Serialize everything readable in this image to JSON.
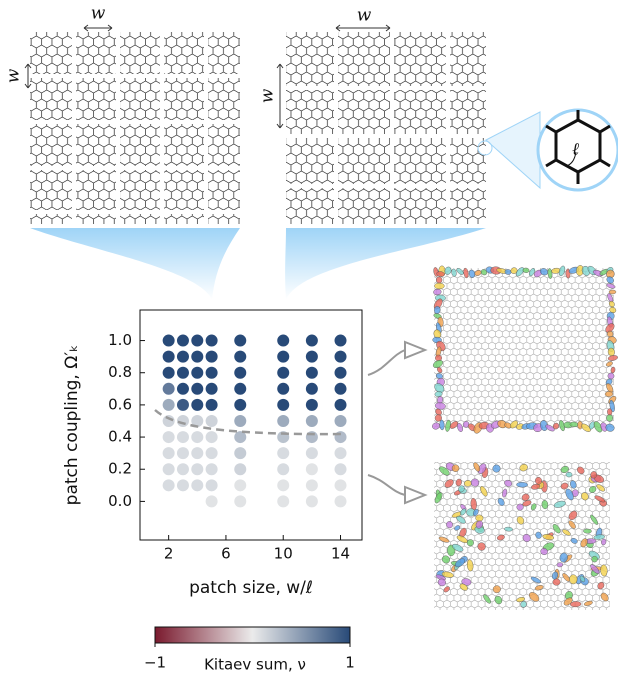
{
  "chart_data": {
    "type": "dotmatrix",
    "x_label": "patch size, w/ℓ",
    "y_label": "patch coupling, Ω′ₖ",
    "x": [
      2,
      3,
      4,
      5,
      7,
      10,
      12,
      14
    ],
    "y": [
      0,
      0.1,
      0.2,
      0.3,
      0.4,
      0.5,
      0.6,
      0.7,
      0.8,
      0.9,
      1
    ],
    "values": [
      [
        null,
        null,
        null,
        0.05,
        0.05,
        0.05,
        0.05,
        0.05
      ],
      [
        0.1,
        0.1,
        0.1,
        0.1,
        0.05,
        0.05,
        0.05,
        0.05
      ],
      [
        0.1,
        0.1,
        0.1,
        0.1,
        0.15,
        0.1,
        0.05,
        0.1
      ],
      [
        0.1,
        0.1,
        0.1,
        0.1,
        0.2,
        0.1,
        0.1,
        0.1
      ],
      [
        0.1,
        0.1,
        0.1,
        0.1,
        0.3,
        0.25,
        0.3,
        0.3
      ],
      [
        0.15,
        0.15,
        0.15,
        0.15,
        0.4,
        0.4,
        0.4,
        0.4
      ],
      [
        0.4,
        0.9,
        1,
        1,
        1,
        1,
        1,
        1
      ],
      [
        0.7,
        1,
        1,
        1,
        1,
        1,
        1,
        1
      ],
      [
        1,
        1,
        1,
        1,
        1,
        1,
        1,
        1
      ],
      [
        1,
        1,
        1,
        1,
        1,
        1,
        1,
        1
      ],
      [
        1,
        1,
        1,
        1,
        1,
        1,
        1,
        1
      ]
    ],
    "xlim": [
      0,
      15.5
    ],
    "ylim": [
      -0.24,
      1.19
    ],
    "xticks": [
      2,
      6,
      10,
      14
    ],
    "yticks": [
      {
        "value": 0,
        "label": "0.0"
      },
      {
        "value": 0.2,
        "label": "0.2"
      },
      {
        "value": 0.4,
        "label": "0.4"
      },
      {
        "value": 0.6,
        "label": "0.6"
      },
      {
        "value": 0.8,
        "label": "0.8"
      },
      {
        "value": 1,
        "label": "1.0"
      }
    ],
    "colorbar": {
      "label": "Kitaev sum, ν",
      "clim": [
        -1,
        1
      ],
      "ticks": [
        {
          "value": -1,
          "label": "−1"
        },
        1
      ],
      "colors": [
        "#7a1a2e",
        "#ebebeb",
        "#284a78"
      ]
    },
    "annotations": [
      "w",
      "w",
      "w",
      "w",
      "ℓ"
    ]
  }
}
